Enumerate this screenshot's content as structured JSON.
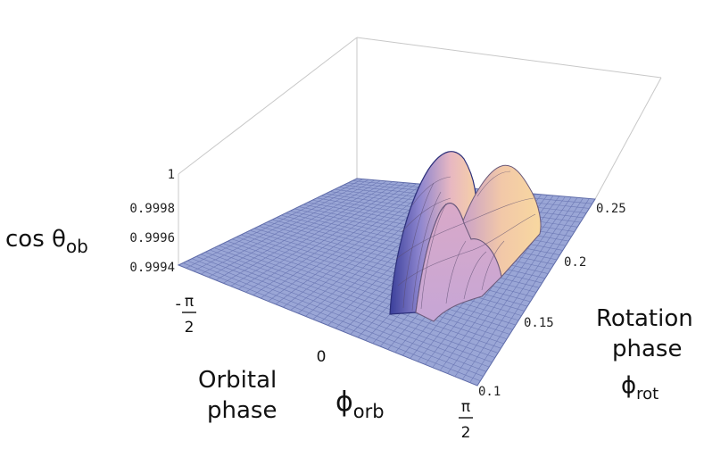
{
  "chart_data": {
    "type": "surface3d",
    "z_axis": {
      "label_main": "cos θ",
      "label_sub": "ob",
      "ticks": [
        "1",
        "0.9998",
        "0.9996",
        "0.9994"
      ],
      "range": [
        0.9994,
        1.0
      ]
    },
    "x_axis": {
      "label_line1": "Orbital",
      "label_line2": "phase",
      "symbol_main": "ϕ",
      "symbol_sub": "orb",
      "ticks": [
        {
          "num": "π",
          "den": "2",
          "sign": "-"
        },
        {
          "text": "0"
        },
        {
          "num": "π",
          "den": "2",
          "sign": ""
        }
      ],
      "range": [
        -1.5708,
        1.5708
      ]
    },
    "y_axis": {
      "label_line1": "Rotation",
      "label_line2": "phase",
      "symbol_main": "ϕ",
      "symbol_sub": "rot",
      "ticks": [
        "0.1",
        "0.15",
        "0.2",
        "0.25"
      ],
      "range": [
        0.1,
        0.25
      ]
    },
    "surface": {
      "baseline": 0.9994,
      "description_peaks": [
        {
          "x_orb": 0.3,
          "y_rot": 0.19,
          "z": 1.0
        },
        {
          "x_orb": 0.9,
          "y_rot": 0.2,
          "z": 0.99985
        }
      ]
    },
    "colors": {
      "flat_surface": "#9aa6d6",
      "mesh_line": "#5d6aa8",
      "peak_light": "#f7cba0",
      "peak_mid": "#d8a6c4",
      "peak_dark": "#6b72c8",
      "box": "#c8c8c8"
    }
  }
}
